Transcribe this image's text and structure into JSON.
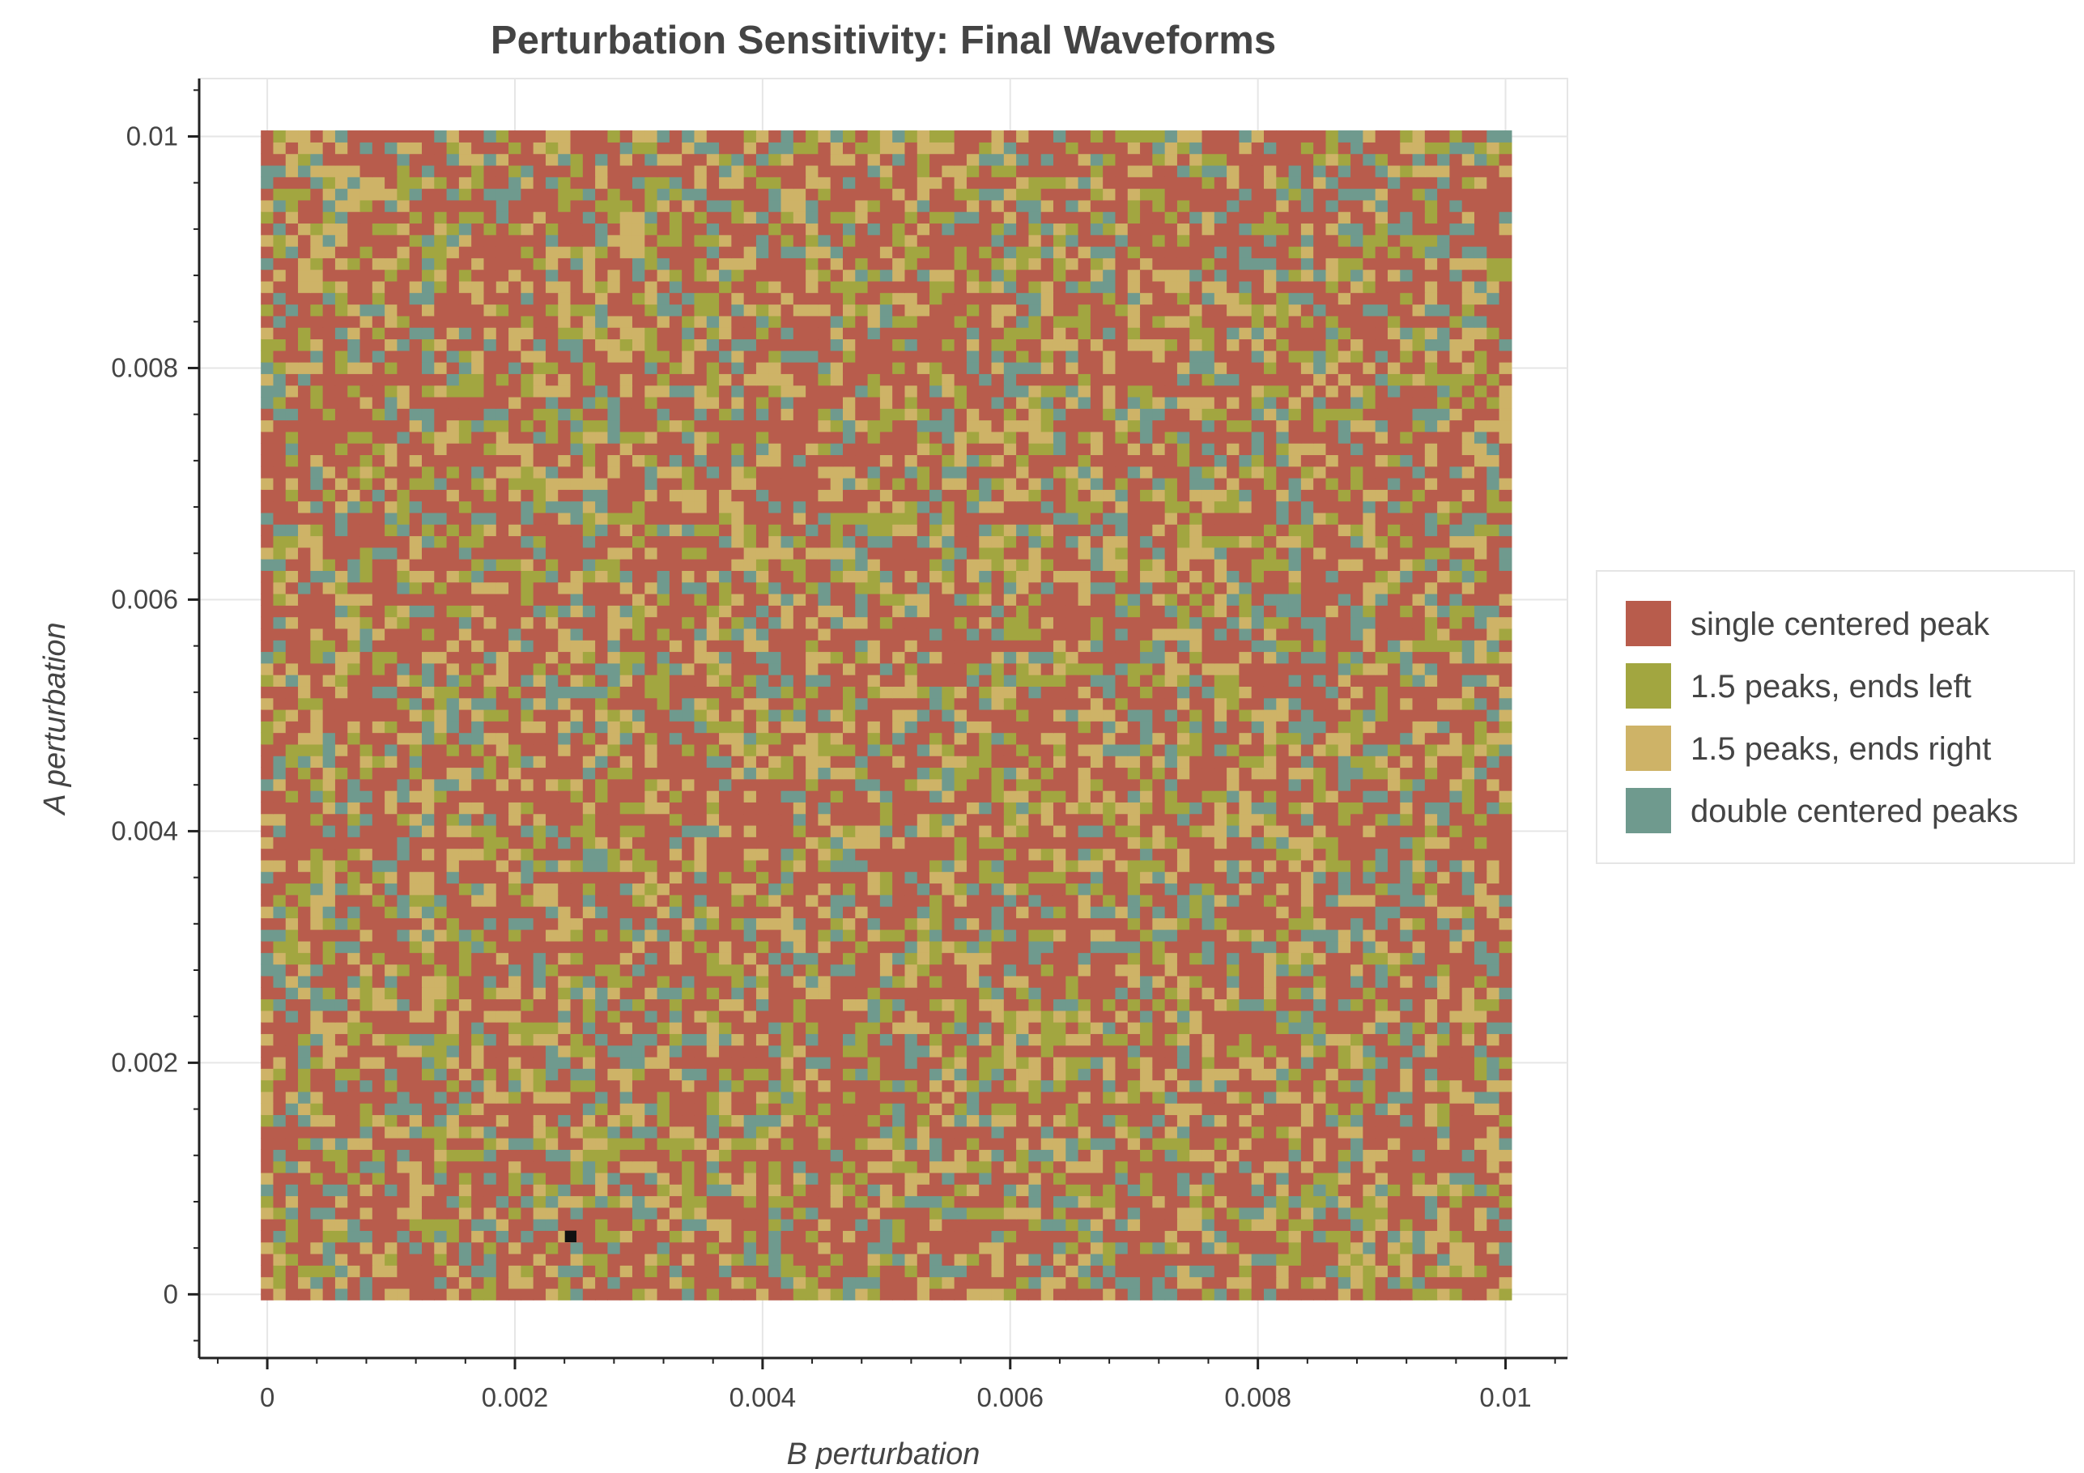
{
  "chart_data": {
    "type": "heatmap",
    "title": "Perturbation Sensitivity: Final Waveforms",
    "xlabel": "B perturbation",
    "ylabel": "A perturbation",
    "xlim": [
      -0.00055,
      0.0105
    ],
    "ylim": [
      -0.00055,
      0.0105
    ],
    "x_ticks": [
      "0",
      "0.002",
      "0.004",
      "0.006",
      "0.008",
      "0.01"
    ],
    "y_ticks": [
      "0",
      "0.002",
      "0.004",
      "0.006",
      "0.008",
      "0.01"
    ],
    "grid": true,
    "legend_position": "right",
    "grid_cells": {
      "x_range": [
        0,
        0.01
      ],
      "y_range": [
        0,
        0.01
      ],
      "n": 101
    },
    "categories": [
      {
        "name": "single centered peak",
        "color": "#b85c4c",
        "weight": 0.5
      },
      {
        "name": "1.5 peaks, ends left",
        "color": "#a2a640",
        "weight": 0.17
      },
      {
        "name": "1.5 peaks, ends right",
        "color": "#ceb367",
        "weight": 0.19
      },
      {
        "name": "double centered peaks",
        "color": "#6f9a8e",
        "weight": 0.14
      }
    ],
    "highlight": {
      "x": 0.00245,
      "y": 0.0005,
      "color": "#111111"
    }
  }
}
